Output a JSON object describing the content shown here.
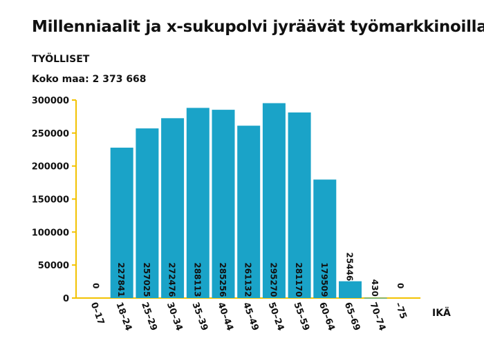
{
  "header": {
    "title": "Millenniaalit ja x-sukupolvi jyräävät työmarkkinoilla",
    "subtitle": "TYÖLLISET",
    "total_label": "Koko maa: 2 373 668"
  },
  "colors": {
    "bar": "#1aa3c8",
    "axis": "#f2c200",
    "text": "#111111"
  },
  "chart_data": {
    "type": "bar",
    "title": "Millenniaalit ja x-sukupolvi jyräävät työmarkkinoilla",
    "ylabel": "TYÖLLISET",
    "xlabel": "IKÄ",
    "categories": [
      "0–17",
      "18–24",
      "25–29",
      "30–34",
      "35–39",
      "40–44",
      "45–49",
      "50–24",
      "55–59",
      "60–64",
      "65–69",
      "70–74",
      "–75"
    ],
    "values": [
      0,
      227841,
      257025,
      272476,
      288113,
      285256,
      261132,
      295270,
      281170,
      179509,
      25446,
      430,
      0
    ],
    "yticks": [
      0,
      50000,
      100000,
      150000,
      200000,
      250000,
      300000
    ],
    "ylim": [
      0,
      300000
    ],
    "grid": false,
    "legend": "none"
  }
}
